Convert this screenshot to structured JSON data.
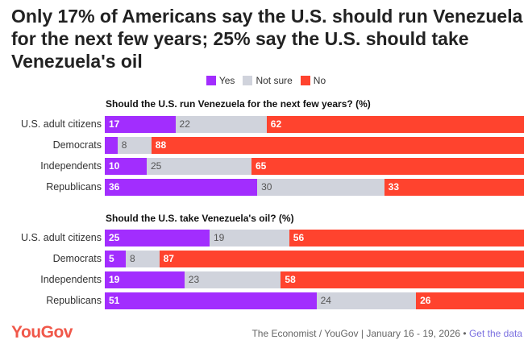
{
  "title": "Only 17% of Americans say the U.S. should run Venezuela for the next few years; 25% say the U.S. should take Venezuela's oil",
  "colors": {
    "yes": "#a22dfe",
    "not_sure": "#d0d3dc",
    "no": "#ff432e"
  },
  "legend": [
    "Yes",
    "Not sure",
    "No"
  ],
  "chart_data": [
    {
      "type": "bar",
      "stacked": true,
      "orientation": "horizontal",
      "title": "Should the U.S. run Venezuela for the next few years? (%)",
      "categories": [
        "U.S. adult citizens",
        "Democrats",
        "Independents",
        "Republicans"
      ],
      "series": [
        {
          "name": "Yes",
          "values": [
            17,
            3,
            10,
            36
          ]
        },
        {
          "name": "Not sure",
          "values": [
            22,
            8,
            25,
            30
          ]
        },
        {
          "name": "No",
          "values": [
            62,
            88,
            65,
            33
          ]
        }
      ]
    },
    {
      "type": "bar",
      "stacked": true,
      "orientation": "horizontal",
      "title": "Should the U.S. take Venezuela's oil? (%)",
      "categories": [
        "U.S. adult citizens",
        "Democrats",
        "Independents",
        "Republicans"
      ],
      "series": [
        {
          "name": "Yes",
          "values": [
            25,
            5,
            19,
            51
          ]
        },
        {
          "name": "Not sure",
          "values": [
            19,
            8,
            23,
            24
          ]
        },
        {
          "name": "No",
          "values": [
            56,
            87,
            58,
            26
          ]
        }
      ]
    }
  ],
  "footer": {
    "logo": "YouGov",
    "source": "The Economist / YouGov | January 16 - 19, 2026 • ",
    "link": "Get the data"
  }
}
